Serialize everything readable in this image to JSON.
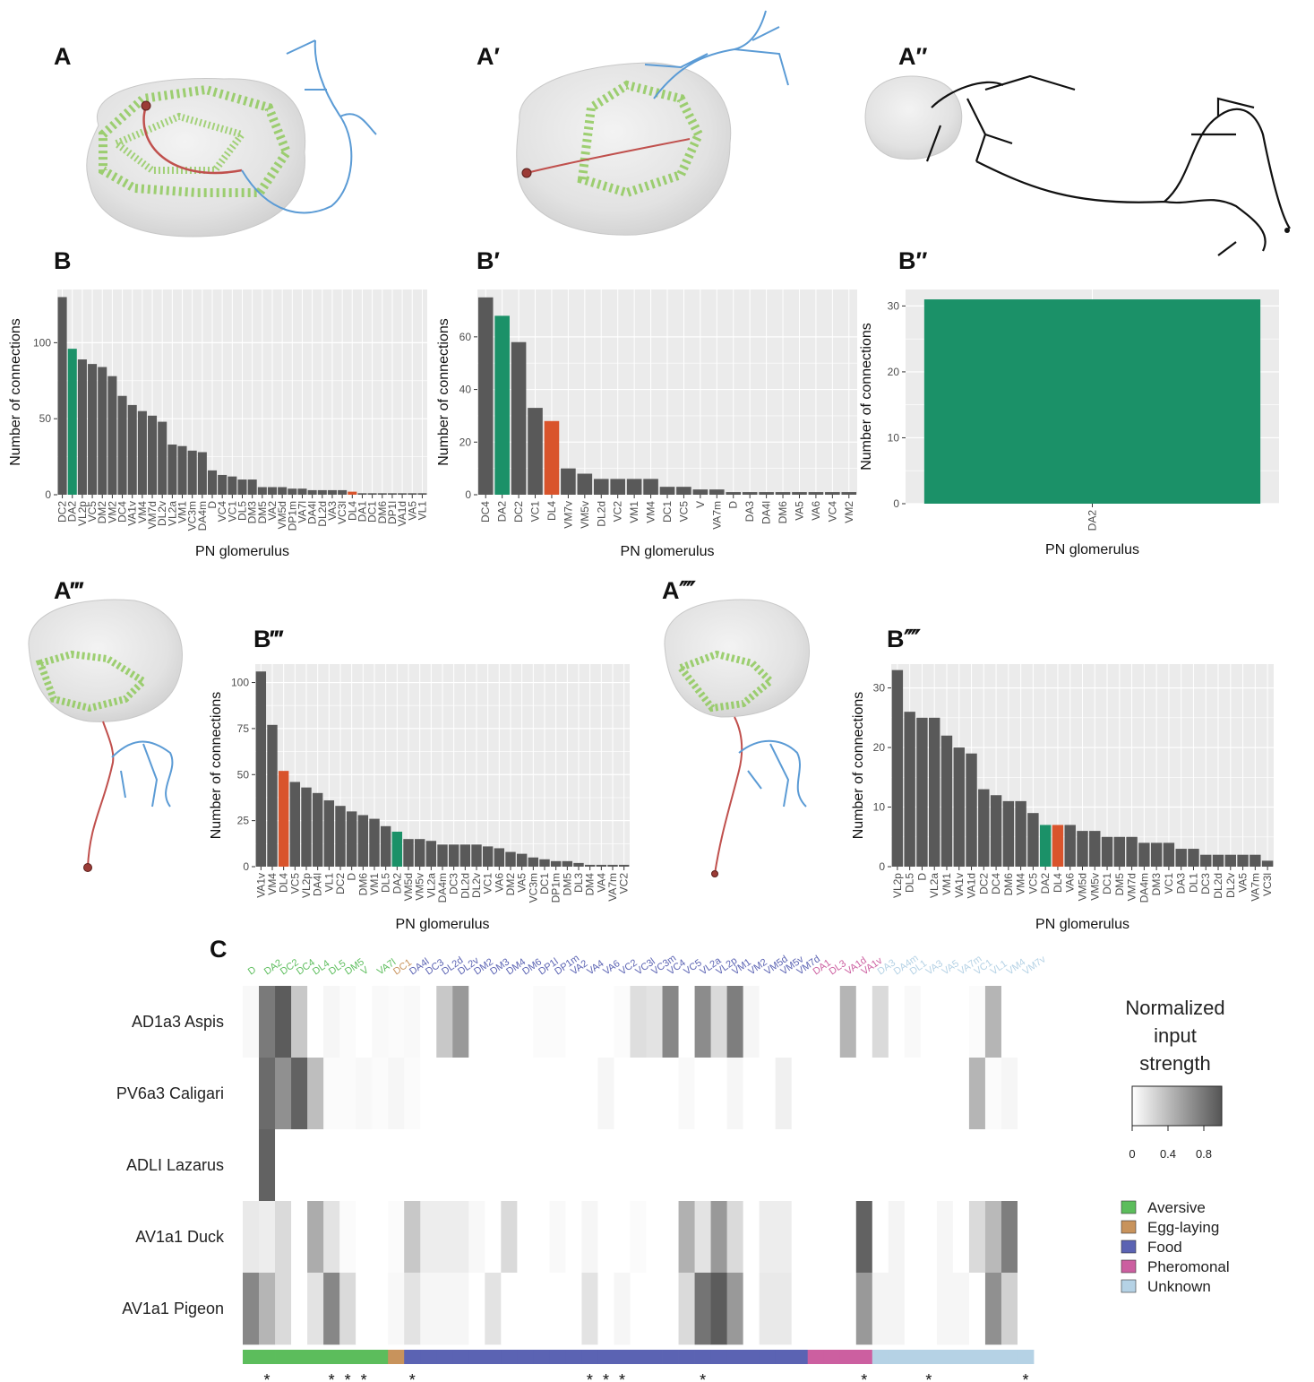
{
  "panels": {
    "A": "A",
    "A1": "A′",
    "A2": "A″",
    "A3": "A‴",
    "A4": "A⁗",
    "B": "B",
    "B1": "B′",
    "B2": "B″",
    "B3": "B‴",
    "B4": "B⁗",
    "C": "C"
  },
  "colors": {
    "bar_default": "#595959",
    "highlight_green": "#1b9168",
    "highlight_red": "#d9542c",
    "panel_bg": "#ebebeb",
    "grid": "#ffffff",
    "neuron_green": "#8ec95a",
    "neuron_blue": "#5b9bd5",
    "neuron_red": "#c0504d",
    "neuron_black": "#111111"
  },
  "chart_data": [
    {
      "id": "B",
      "type": "bar",
      "xlabel": "PN glomerulus",
      "ylabel": "Number of connections",
      "ylim": [
        0,
        135
      ],
      "yticks": [
        0,
        50,
        100
      ],
      "grid": true,
      "categories": [
        "DC2",
        "DA2",
        "VL2p",
        "VC5",
        "DM2",
        "VM2",
        "DC4",
        "VA1v",
        "VM4",
        "VM7d",
        "DL2v",
        "VL2a",
        "VM1",
        "VC3m",
        "DA4m",
        "D",
        "VC4",
        "VC1",
        "DL5",
        "DM3",
        "DM5",
        "VA2",
        "VM5d",
        "DP1m",
        "VA7l",
        "DA4l",
        "DL2d",
        "VA3",
        "VC3l",
        "DL4",
        "DA1",
        "DC1",
        "DM6",
        "DP1l",
        "VA1d",
        "VA5",
        "VL1"
      ],
      "values": [
        130,
        96,
        89,
        86,
        84,
        78,
        65,
        59,
        55,
        52,
        48,
        33,
        32,
        29,
        28,
        16,
        13,
        12,
        10,
        10,
        5,
        5,
        5,
        4,
        4,
        3,
        3,
        3,
        3,
        2,
        1,
        1,
        1,
        1,
        1,
        1,
        1
      ],
      "highlight": {
        "DA2": "green",
        "DL4": "red"
      }
    },
    {
      "id": "B1",
      "type": "bar",
      "xlabel": "PN glomerulus",
      "ylabel": "Number of connections",
      "ylim": [
        0,
        78
      ],
      "yticks": [
        0,
        20,
        40,
        60
      ],
      "grid": true,
      "categories": [
        "DC4",
        "DA2",
        "DC2",
        "VC1",
        "DL4",
        "VM7v",
        "VM5v",
        "DL2d",
        "VC2",
        "VM1",
        "VM4",
        "DC1",
        "VC5",
        "V",
        "VA7m",
        "D",
        "DA3",
        "DA4l",
        "DM6",
        "VA5",
        "VA6",
        "VC4",
        "VM2"
      ],
      "values": [
        75,
        68,
        58,
        33,
        28,
        10,
        8,
        6,
        6,
        6,
        6,
        3,
        3,
        2,
        2,
        1,
        1,
        1,
        1,
        1,
        1,
        1,
        1
      ],
      "highlight": {
        "DA2": "green",
        "DL4": "red"
      }
    },
    {
      "id": "B2",
      "type": "bar",
      "xlabel": "PN glomerulus",
      "ylabel": "Number of connections",
      "ylim": [
        0,
        32.5
      ],
      "yticks": [
        0,
        10,
        20,
        30
      ],
      "grid": true,
      "categories": [
        "DA2"
      ],
      "values": [
        31
      ],
      "highlight": {
        "DA2": "green"
      }
    },
    {
      "id": "B3",
      "type": "bar",
      "xlabel": "PN glomerulus",
      "ylabel": "Number of connections",
      "ylim": [
        0,
        110
      ],
      "yticks": [
        0,
        25,
        50,
        75,
        100
      ],
      "grid": true,
      "categories": [
        "VA1v",
        "VM4",
        "DL4",
        "VC5",
        "VL2p",
        "DA4l",
        "VL1",
        "DC2",
        "D",
        "DM6",
        "VM1",
        "DL5",
        "DA2",
        "VM5d",
        "VM5v",
        "VL2a",
        "DA4m",
        "DC3",
        "DL2d",
        "DL2v",
        "VC1",
        "VA6",
        "DM2",
        "VA5",
        "VC3m",
        "DC1",
        "DP1m",
        "DM5",
        "DL3",
        "DM4",
        "VA4",
        "VA7m",
        "VC2"
      ],
      "values": [
        106,
        77,
        52,
        46,
        43,
        40,
        36,
        33,
        30,
        28,
        26,
        22,
        19,
        15,
        15,
        14,
        12,
        12,
        12,
        12,
        11,
        10,
        8,
        7,
        5,
        4,
        3,
        3,
        2,
        1,
        1,
        1,
        1
      ],
      "highlight": {
        "DA2": "green",
        "DL4": "red"
      }
    },
    {
      "id": "B4",
      "type": "bar",
      "xlabel": "PN glomerulus",
      "ylabel": "Number of connections",
      "ylim": [
        0,
        34
      ],
      "yticks": [
        0,
        10,
        20,
        30
      ],
      "grid": true,
      "categories": [
        "VL2p",
        "DL5",
        "D",
        "VL2a",
        "VM1",
        "VA1v",
        "VA1d",
        "DC2",
        "DC4",
        "DM6",
        "VM4",
        "VC5",
        "DA2",
        "DL4",
        "VA6",
        "VM5d",
        "VM5v",
        "DC1",
        "DM5",
        "VM7d",
        "DA4m",
        "DM3",
        "VC1",
        "DA3",
        "DL1",
        "DC3",
        "DL2d",
        "DL2v",
        "VA5",
        "VA7m",
        "VC3l"
      ],
      "values": [
        33,
        26,
        25,
        25,
        22,
        20,
        19,
        13,
        12,
        11,
        11,
        9,
        7,
        7,
        7,
        6,
        6,
        5,
        5,
        5,
        4,
        4,
        4,
        3,
        3,
        2,
        2,
        2,
        2,
        2,
        1
      ],
      "highlight": {
        "DA2": "green",
        "DL4": "red"
      }
    },
    {
      "id": "C",
      "type": "heatmap",
      "legend_title": [
        "Normalized",
        "input",
        "strength"
      ],
      "colorbar_ticks": [
        "0",
        "0.4",
        "0.8"
      ],
      "rows": [
        "AD1a3 Aspis",
        "PV6a3 Caligari",
        "ADLI Lazarus",
        "AV1a1 Duck",
        "AV1a1 Pigeon"
      ],
      "columns": [
        "D",
        "DA2",
        "DC2",
        "DC4",
        "DL4",
        "DL5",
        "DM5",
        "V",
        "VA7l",
        "DC1",
        "DA4l",
        "DC3",
        "DL2d",
        "DL2v",
        "DM2",
        "DM3",
        "DM4",
        "DM6",
        "DP1l",
        "DP1m",
        "VA2",
        "VA4",
        "VA6",
        "VC2",
        "VC3l",
        "VC3m",
        "VC4",
        "VC5",
        "VL2a",
        "VL2p",
        "VM1",
        "VM2",
        "VM5d",
        "VM5v",
        "VM7d",
        "DA1",
        "DL3",
        "VA1d",
        "VA1v",
        "DA3",
        "DA4m",
        "DL1",
        "VA3",
        "VA5",
        "VA7m",
        "VC1",
        "VL1",
        "VM4",
        "VM7v"
      ],
      "column_groups": [
        "Aversive",
        "Aversive",
        "Aversive",
        "Aversive",
        "Aversive",
        "Aversive",
        "Aversive",
        "Aversive",
        "Aversive",
        "Egg-laying",
        "Food",
        "Food",
        "Food",
        "Food",
        "Food",
        "Food",
        "Food",
        "Food",
        "Food",
        "Food",
        "Food",
        "Food",
        "Food",
        "Food",
        "Food",
        "Food",
        "Food",
        "Food",
        "Food",
        "Food",
        "Food",
        "Food",
        "Food",
        "Food",
        "Food",
        "Pheromonal",
        "Pheromonal",
        "Pheromonal",
        "Pheromonal",
        "Unknown",
        "Unknown",
        "Unknown",
        "Unknown",
        "Unknown",
        "Unknown",
        "Unknown",
        "Unknown",
        "Unknown",
        "Unknown"
      ],
      "groups": [
        {
          "name": "Aversive",
          "color": "#5cbd5c"
        },
        {
          "name": "Egg-laying",
          "color": "#c8935c"
        },
        {
          "name": "Food",
          "color": "#5b63b3"
        },
        {
          "name": "Pheromonal",
          "color": "#cc5fa0"
        },
        {
          "name": "Unknown",
          "color": "#b5d2e5"
        }
      ],
      "values": [
        [
          0.04,
          0.72,
          0.88,
          0.3,
          0.0,
          0.05,
          0.02,
          0.0,
          0.03,
          0.02,
          0.03,
          0.0,
          0.3,
          0.55,
          0.0,
          0.0,
          0.0,
          0.0,
          0.02,
          0.02,
          0.0,
          0.0,
          0.0,
          0.02,
          0.18,
          0.15,
          0.65,
          0.0,
          0.62,
          0.2,
          0.7,
          0.05,
          0.0,
          0.0,
          0.0,
          0.0,
          0.0,
          0.4,
          0.0,
          0.2,
          0.0,
          0.03,
          0.0,
          0.0,
          0.0,
          0.02,
          0.4,
          0.0,
          0.0
        ],
        [
          0.0,
          0.8,
          0.6,
          0.85,
          0.35,
          0.02,
          0.02,
          0.04,
          0.02,
          0.05,
          0.02,
          0.0,
          0.0,
          0.0,
          0.0,
          0.0,
          0.0,
          0.0,
          0.0,
          0.0,
          0.0,
          0.0,
          0.05,
          0.0,
          0.0,
          0.0,
          0.0,
          0.03,
          0.0,
          0.0,
          0.05,
          0.0,
          0.0,
          0.08,
          0.0,
          0.0,
          0.0,
          0.0,
          0.0,
          0.0,
          0.0,
          0.0,
          0.0,
          0.0,
          0.0,
          0.4,
          0.02,
          0.05,
          0.0
        ],
        [
          0.0,
          0.85,
          0.0,
          0.0,
          0.0,
          0.0,
          0.0,
          0.0,
          0.0,
          0.0,
          0.0,
          0.0,
          0.0,
          0.0,
          0.0,
          0.0,
          0.0,
          0.0,
          0.0,
          0.0,
          0.0,
          0.0,
          0.0,
          0.0,
          0.0,
          0.0,
          0.0,
          0.0,
          0.0,
          0.0,
          0.0,
          0.0,
          0.0,
          0.0,
          0.0,
          0.0,
          0.0,
          0.0,
          0.0,
          0.0,
          0.0,
          0.0,
          0.0,
          0.0,
          0.0,
          0.0,
          0.0,
          0.0,
          0.0
        ],
        [
          0.12,
          0.1,
          0.2,
          0.0,
          0.45,
          0.15,
          0.02,
          0.0,
          0.0,
          0.02,
          0.3,
          0.1,
          0.1,
          0.1,
          0.04,
          0.0,
          0.2,
          0.0,
          0.0,
          0.03,
          0.0,
          0.05,
          0.0,
          0.0,
          0.02,
          0.0,
          0.0,
          0.42,
          0.15,
          0.55,
          0.2,
          0.0,
          0.1,
          0.1,
          0.0,
          0.0,
          0.0,
          0.0,
          0.85,
          0.0,
          0.06,
          0.0,
          0.0,
          0.05,
          0.0,
          0.2,
          0.38,
          0.7,
          0.0
        ],
        [
          0.65,
          0.4,
          0.2,
          0.0,
          0.15,
          0.65,
          0.2,
          0.0,
          0.0,
          0.04,
          0.15,
          0.05,
          0.05,
          0.05,
          0.0,
          0.15,
          0.0,
          0.0,
          0.0,
          0.0,
          0.0,
          0.15,
          0.0,
          0.05,
          0.0,
          0.0,
          0.0,
          0.2,
          0.75,
          0.88,
          0.55,
          0.0,
          0.12,
          0.12,
          0.0,
          0.0,
          0.0,
          0.0,
          0.55,
          0.06,
          0.06,
          0.0,
          0.0,
          0.05,
          0.05,
          0.0,
          0.6,
          0.25,
          0.0
        ]
      ],
      "significant": [
        "DA2",
        "DL5",
        "DM5",
        "V",
        "DA4l",
        "VA4",
        "VA6",
        "VC2",
        "VL2a",
        "VA1v",
        "VA3",
        "VM7v"
      ],
      "star": "*"
    }
  ]
}
